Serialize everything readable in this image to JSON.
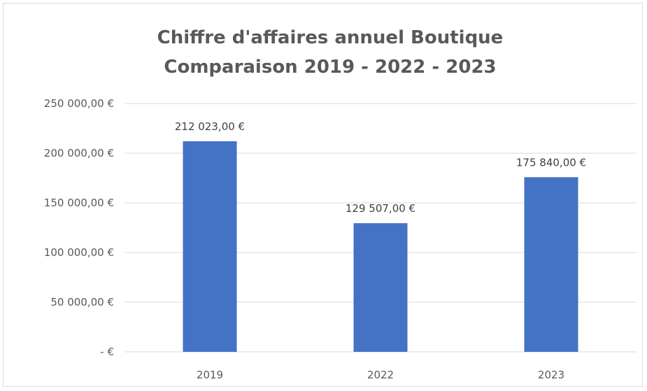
{
  "chart_data": {
    "type": "bar",
    "title": "Chiffre d'affaires annuel Boutique",
    "subtitle": "Comparaison 2019 - 2022 - 2023",
    "categories": [
      "2019",
      "2022",
      "2023"
    ],
    "values": [
      212023,
      129507,
      175840
    ],
    "data_labels": [
      "212 023,00 €",
      "129 507,00 €",
      "175 840,00 €"
    ],
    "ylim": [
      0,
      250000
    ],
    "yticks": [
      0,
      50000,
      100000,
      150000,
      200000,
      250000
    ],
    "ytick_labels": [
      "-   €",
      "50 000,00 €",
      "100 000,00 €",
      "150 000,00 €",
      "200 000,00 €",
      "250 000,00 €"
    ],
    "xlabel": "",
    "ylabel": "",
    "grid": true,
    "legend": "none",
    "bar_color": "#4472C4",
    "grid_color": "#d9d9d9"
  }
}
